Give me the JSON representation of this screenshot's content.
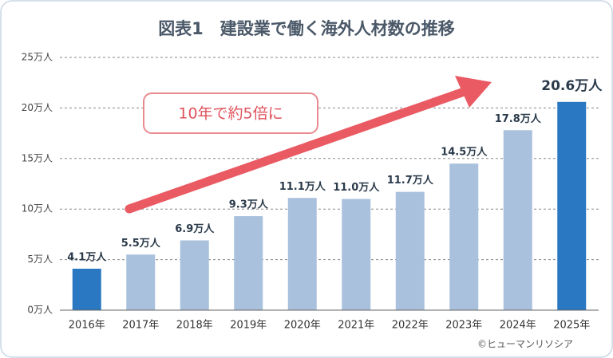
{
  "chart_data": {
    "type": "bar",
    "title": "図表1　建設業で働く海外人材数の推移",
    "categories": [
      "2016年",
      "2017年",
      "2018年",
      "2019年",
      "2020年",
      "2021年",
      "2022年",
      "2023年",
      "2024年",
      "2025年"
    ],
    "values": [
      4.1,
      5.5,
      6.9,
      9.3,
      11.1,
      11.0,
      11.7,
      14.5,
      17.8,
      20.6
    ],
    "value_labels": [
      "4.1万人",
      "5.5万人",
      "6.9万人",
      "9.3万人",
      "11.1万人",
      "11.0万人",
      "11.7万人",
      "14.5万人",
      "17.8万人",
      "20.6万人"
    ],
    "colors": [
      "#2a78c2",
      "#a9c1dc",
      "#a9c1dc",
      "#a9c1dc",
      "#a9c1dc",
      "#a9c1dc",
      "#a9c1dc",
      "#a9c1dc",
      "#a9c1dc",
      "#2a78c2"
    ],
    "ylim": [
      0,
      25
    ],
    "yticks": [
      {
        "value": 0,
        "label": "0万人"
      },
      {
        "value": 5,
        "label": "5万人"
      },
      {
        "value": 10,
        "label": "10万人"
      },
      {
        "value": 15,
        "label": "15万人"
      },
      {
        "value": 20,
        "label": "20万人"
      },
      {
        "value": 25,
        "label": "25万人"
      }
    ],
    "grid": true,
    "annotation": "10年で約5倍に",
    "source": "©ヒューマンリソシア"
  }
}
